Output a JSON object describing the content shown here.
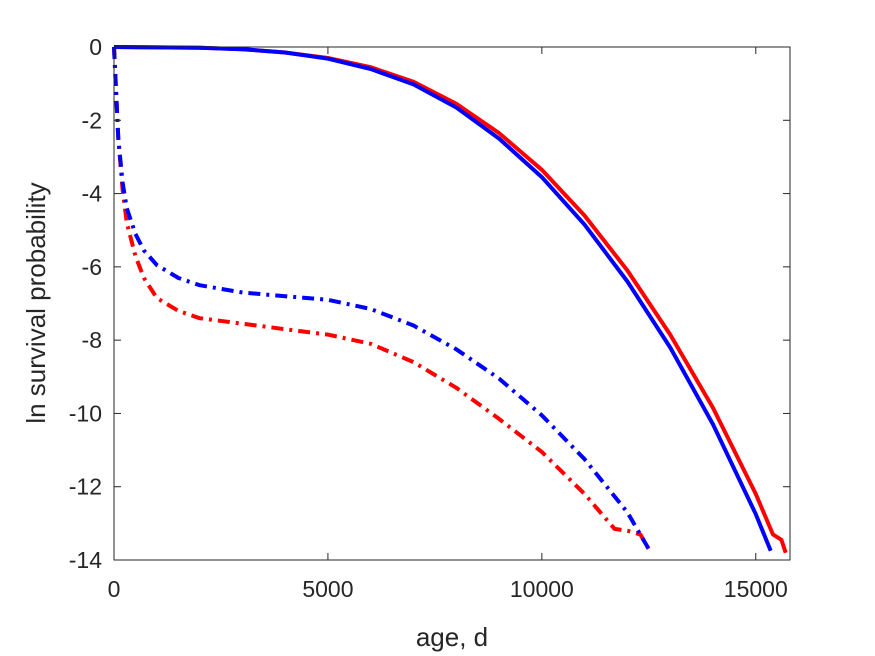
{
  "chart_data": {
    "type": "line",
    "title": "",
    "xlabel": "age, d",
    "ylabel": "ln survival probability",
    "xlim": [
      0,
      15800
    ],
    "ylim": [
      -14,
      0
    ],
    "xticks": [
      0,
      5000,
      10000,
      15000
    ],
    "yticks": [
      0,
      -2,
      -4,
      -6,
      -8,
      -10,
      -12,
      -14
    ],
    "grid": false,
    "series": [
      {
        "color": "#ff0000",
        "style": "solid",
        "x": [
          0,
          1000,
          2000,
          3000,
          4000,
          5000,
          6000,
          7000,
          8000,
          9000,
          10000,
          11000,
          12000,
          13000,
          14000,
          15000,
          15400,
          15600,
          15700
        ],
        "y": [
          0,
          -0.01,
          -0.02,
          -0.06,
          -0.15,
          -0.3,
          -0.55,
          -0.95,
          -1.55,
          -2.35,
          -3.35,
          -4.6,
          -6.1,
          -7.85,
          -9.85,
          -12.2,
          -13.3,
          -13.45,
          -13.8
        ]
      },
      {
        "color": "#0000ff",
        "style": "solid",
        "x": [
          0,
          1000,
          2000,
          3000,
          4000,
          5000,
          6000,
          7000,
          8000,
          9000,
          10000,
          11000,
          12000,
          13000,
          14000,
          15000,
          15350
        ],
        "y": [
          0,
          -0.01,
          -0.02,
          -0.06,
          -0.15,
          -0.32,
          -0.6,
          -1.02,
          -1.65,
          -2.5,
          -3.55,
          -4.85,
          -6.4,
          -8.2,
          -10.3,
          -12.75,
          -13.75
        ]
      },
      {
        "color": "#ff0000",
        "style": "dashdot",
        "x": [
          0,
          100,
          200,
          300,
          500,
          700,
          1000,
          1500,
          2000,
          3000,
          4000,
          5000,
          6000,
          7000,
          8000,
          9000,
          10000,
          11000,
          11700,
          12000,
          12300,
          12550
        ],
        "y": [
          0,
          -2.5,
          -3.9,
          -4.8,
          -5.7,
          -6.3,
          -6.85,
          -7.2,
          -7.4,
          -7.55,
          -7.7,
          -7.85,
          -8.1,
          -8.6,
          -9.3,
          -10.15,
          -11.05,
          -12.2,
          -13.15,
          -13.2,
          -13.3,
          -13.8
        ]
      },
      {
        "color": "#0000ff",
        "style": "dashdot",
        "x": [
          0,
          100,
          200,
          300,
          500,
          700,
          1000,
          1500,
          2000,
          3000,
          4000,
          5000,
          6000,
          7000,
          8000,
          9000,
          10000,
          11000,
          12000,
          12550
        ],
        "y": [
          0,
          -2.5,
          -3.7,
          -4.4,
          -5.1,
          -5.55,
          -5.95,
          -6.3,
          -6.5,
          -6.7,
          -6.8,
          -6.9,
          -7.15,
          -7.6,
          -8.25,
          -9.05,
          -10.05,
          -11.25,
          -12.7,
          -13.8
        ]
      }
    ]
  }
}
